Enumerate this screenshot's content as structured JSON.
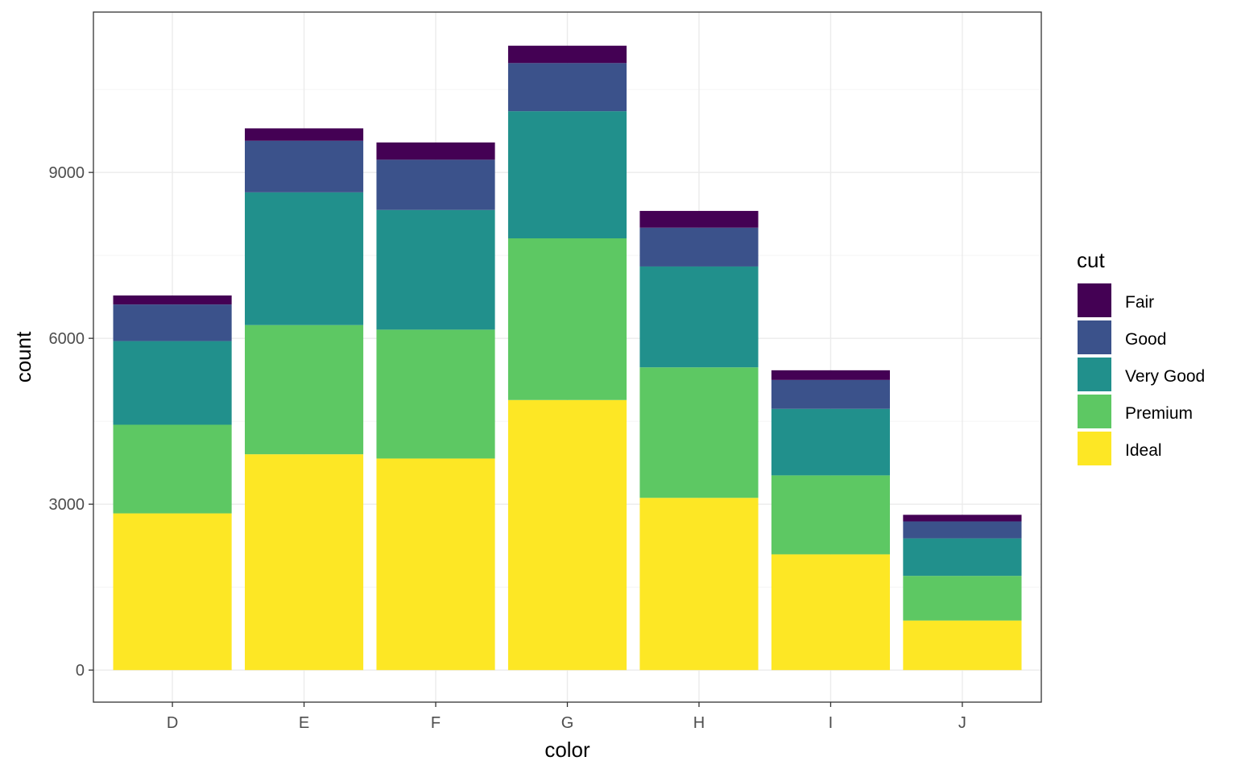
{
  "chart_data": {
    "type": "bar",
    "stacked": true,
    "title": "",
    "xlabel": "color",
    "ylabel": "count",
    "categories": [
      "D",
      "E",
      "F",
      "G",
      "H",
      "I",
      "J"
    ],
    "series": [
      {
        "name": "Fair",
        "color": "#440154",
        "values": [
          163,
          224,
          312,
          314,
          303,
          175,
          119
        ]
      },
      {
        "name": "Good",
        "color": "#3B528B",
        "values": [
          662,
          933,
          909,
          871,
          702,
          522,
          307
        ]
      },
      {
        "name": "Very Good",
        "color": "#21908C",
        "values": [
          1513,
          2400,
          2164,
          2299,
          1824,
          1204,
          678
        ]
      },
      {
        "name": "Premium",
        "color": "#5DC863",
        "values": [
          1603,
          2337,
          2331,
          2924,
          2360,
          1428,
          808
        ]
      },
      {
        "name": "Ideal",
        "color": "#FDE725",
        "values": [
          2834,
          3903,
          3826,
          4884,
          3115,
          2093,
          896
        ]
      }
    ],
    "ylim": [
      -580,
      11900
    ],
    "yticks": [
      0,
      3000,
      6000,
      9000
    ],
    "ytick_labels": [
      "0",
      "3000",
      "6000",
      "9000"
    ],
    "grid": true,
    "legend": {
      "title": "cut",
      "position": "right"
    }
  }
}
